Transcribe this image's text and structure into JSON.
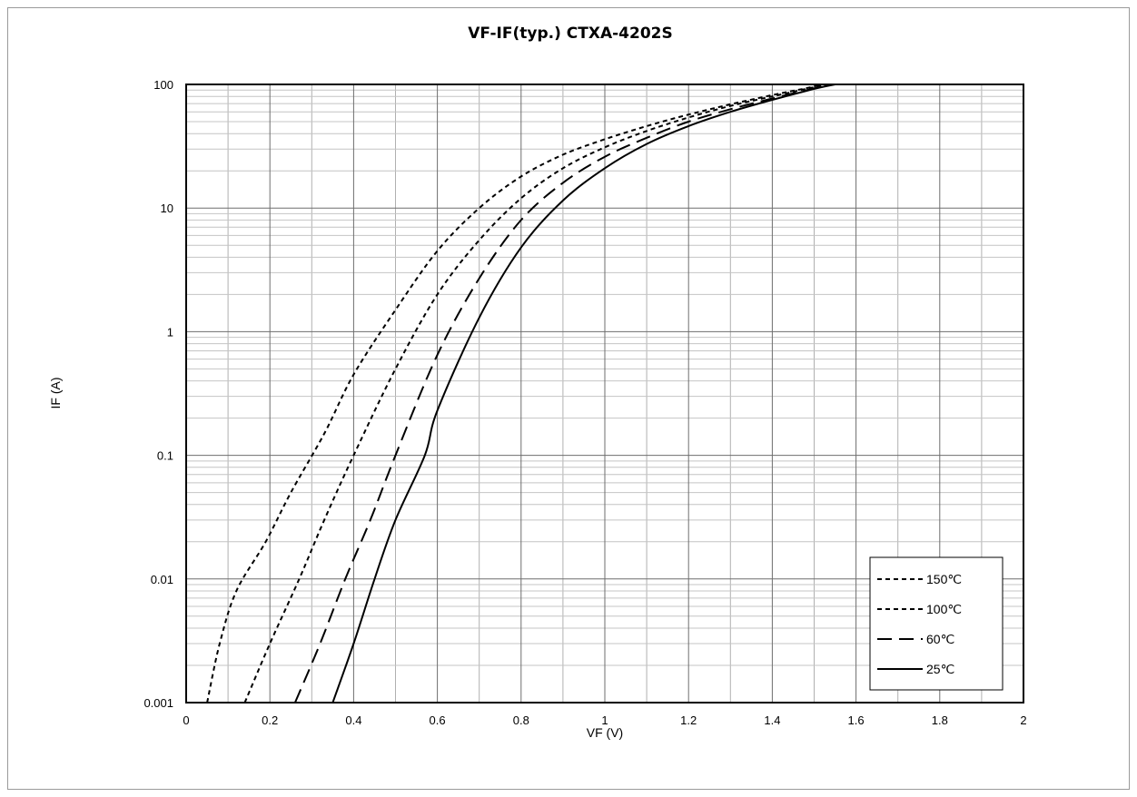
{
  "chart_data": {
    "type": "line",
    "title": "VF-IF(typ.) CTXA-4202S",
    "xlabel": "VF (V)",
    "ylabel": "IF (A)",
    "xlim": [
      0,
      2
    ],
    "ylim": [
      0.001,
      100
    ],
    "yscale": "log",
    "grid": true,
    "legend_position": "bottom-right",
    "x_ticks": [
      "0",
      "0.2",
      "0.4",
      "0.6",
      "0.8",
      "1",
      "1.2",
      "1.4",
      "1.6",
      "1.8",
      "2"
    ],
    "y_ticks": [
      "0.001",
      "0.01",
      "0.1",
      "1",
      "10",
      "100"
    ],
    "series": [
      {
        "name": "150℃",
        "style": "short-dash",
        "color": "#000000",
        "points": [
          [
            0.05,
            0.001
          ],
          [
            0.08,
            0.003
          ],
          [
            0.12,
            0.008
          ],
          [
            0.19,
            0.02
          ],
          [
            0.25,
            0.05
          ],
          [
            0.33,
            0.15
          ],
          [
            0.4,
            0.45
          ],
          [
            0.5,
            1.5
          ],
          [
            0.6,
            4.5
          ],
          [
            0.7,
            10
          ],
          [
            0.8,
            18
          ],
          [
            0.9,
            27
          ],
          [
            1.0,
            36
          ],
          [
            1.1,
            46
          ],
          [
            1.2,
            57
          ],
          [
            1.3,
            69
          ],
          [
            1.4,
            82
          ],
          [
            1.48,
            93
          ],
          [
            1.52,
            100
          ]
        ]
      },
      {
        "name": "100℃",
        "style": "short-dash",
        "color": "#000000",
        "points": [
          [
            0.14,
            0.001
          ],
          [
            0.2,
            0.003
          ],
          [
            0.27,
            0.01
          ],
          [
            0.33,
            0.03
          ],
          [
            0.4,
            0.1
          ],
          [
            0.5,
            0.5
          ],
          [
            0.6,
            2
          ],
          [
            0.7,
            5.5
          ],
          [
            0.8,
            12
          ],
          [
            0.9,
            21
          ],
          [
            1.0,
            31
          ],
          [
            1.1,
            42
          ],
          [
            1.2,
            54
          ],
          [
            1.3,
            67
          ],
          [
            1.4,
            80
          ],
          [
            1.5,
            95
          ],
          [
            1.53,
            100
          ]
        ]
      },
      {
        "name": "60℃",
        "style": "long-dash",
        "color": "#000000",
        "points": [
          [
            0.26,
            0.001
          ],
          [
            0.32,
            0.003
          ],
          [
            0.38,
            0.01
          ],
          [
            0.44,
            0.03
          ],
          [
            0.5,
            0.1
          ],
          [
            0.6,
            0.65
          ],
          [
            0.7,
            2.7
          ],
          [
            0.8,
            8
          ],
          [
            0.9,
            16
          ],
          [
            1.0,
            26
          ],
          [
            1.1,
            37
          ],
          [
            1.2,
            50
          ],
          [
            1.3,
            63
          ],
          [
            1.4,
            77
          ],
          [
            1.5,
            93
          ],
          [
            1.54,
            100
          ]
        ]
      },
      {
        "name": "25℃",
        "style": "solid",
        "color": "#000000",
        "points": [
          [
            0.35,
            0.001
          ],
          [
            0.4,
            0.003
          ],
          [
            0.45,
            0.01
          ],
          [
            0.5,
            0.03
          ],
          [
            0.57,
            0.1
          ],
          [
            0.6,
            0.23
          ],
          [
            0.7,
            1.3
          ],
          [
            0.8,
            4.8
          ],
          [
            0.9,
            11.5
          ],
          [
            1.0,
            21
          ],
          [
            1.1,
            33
          ],
          [
            1.2,
            46
          ],
          [
            1.3,
            60
          ],
          [
            1.4,
            75
          ],
          [
            1.5,
            92
          ],
          [
            1.55,
            100
          ]
        ]
      }
    ]
  }
}
